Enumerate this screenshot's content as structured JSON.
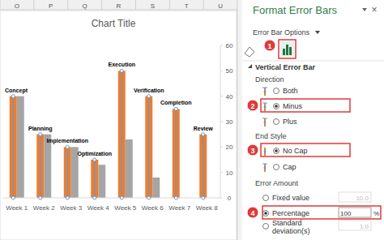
{
  "spreadsheet": {
    "columns": [
      "O",
      "P",
      "Q",
      "R",
      "S",
      "T",
      "U"
    ]
  },
  "chart_data": {
    "type": "bar",
    "title": "Chart Title",
    "categories": [
      "Week 1",
      "Week 2",
      "Week 3",
      "Week 4",
      "Week 5",
      "Week 6",
      "Week 7",
      "Week 8"
    ],
    "annotations": [
      "Concept",
      "Planning",
      "Implementation",
      "Optimization",
      "Execution",
      "Verification",
      "Completion",
      "Review"
    ],
    "series": [
      {
        "color": "#ed7d31",
        "values": [
          40,
          25,
          20,
          15,
          50,
          40,
          35,
          25
        ],
        "error_minus_percent": 100
      },
      {
        "color": "#a5a5a5",
        "values": [
          40,
          25,
          20,
          13,
          23,
          8,
          0,
          0
        ]
      }
    ],
    "ylim": [
      0,
      60
    ],
    "yticks": [
      0,
      10,
      20,
      30,
      40,
      50,
      60
    ],
    "grid": false
  },
  "pane": {
    "title": "Format Error Bars",
    "close": "×",
    "menu": "Error Bar Options",
    "section": "Vertical Error Bar",
    "groups": [
      {
        "heading": "Direction",
        "options": [
          {
            "label": "Both",
            "selected": false
          },
          {
            "label": "Minus",
            "selected": true
          },
          {
            "label": "Plus",
            "selected": false
          }
        ]
      },
      {
        "heading": "End Style",
        "options": [
          {
            "label": "No Cap",
            "selected": true
          },
          {
            "label": "Cap",
            "selected": false
          }
        ]
      },
      {
        "heading": "Error Amount",
        "options": [
          {
            "label": "Fixed value",
            "selected": false,
            "input": "10.0"
          },
          {
            "label": "Percentage",
            "selected": true,
            "input": "100",
            "unit": "%"
          },
          {
            "label": "Standard deviation(s)",
            "selected": false,
            "input": "1.0"
          }
        ]
      }
    ],
    "callouts": [
      "1",
      "2",
      "3",
      "4"
    ]
  }
}
